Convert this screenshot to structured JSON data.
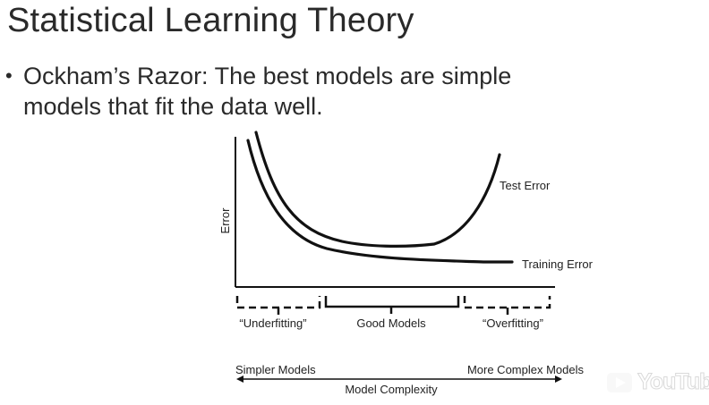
{
  "slide": {
    "title": "Statistical Learning Theory",
    "bullet": "Ockham’s Razor: The best models are simple models that fit the data well."
  },
  "diagram": {
    "y_axis_label": "Error",
    "curves": [
      {
        "name": "Test Error"
      },
      {
        "name": "Training Error"
      }
    ],
    "regions": [
      "“Underfitting”",
      "Good Models",
      "“Overfitting”"
    ],
    "complexity_left": "Simpler Models",
    "complexity_right": "More Complex Models",
    "x_axis_label": "Model Complexity"
  },
  "watermark": {
    "text": "YouTube",
    "icon": "play-icon"
  }
}
